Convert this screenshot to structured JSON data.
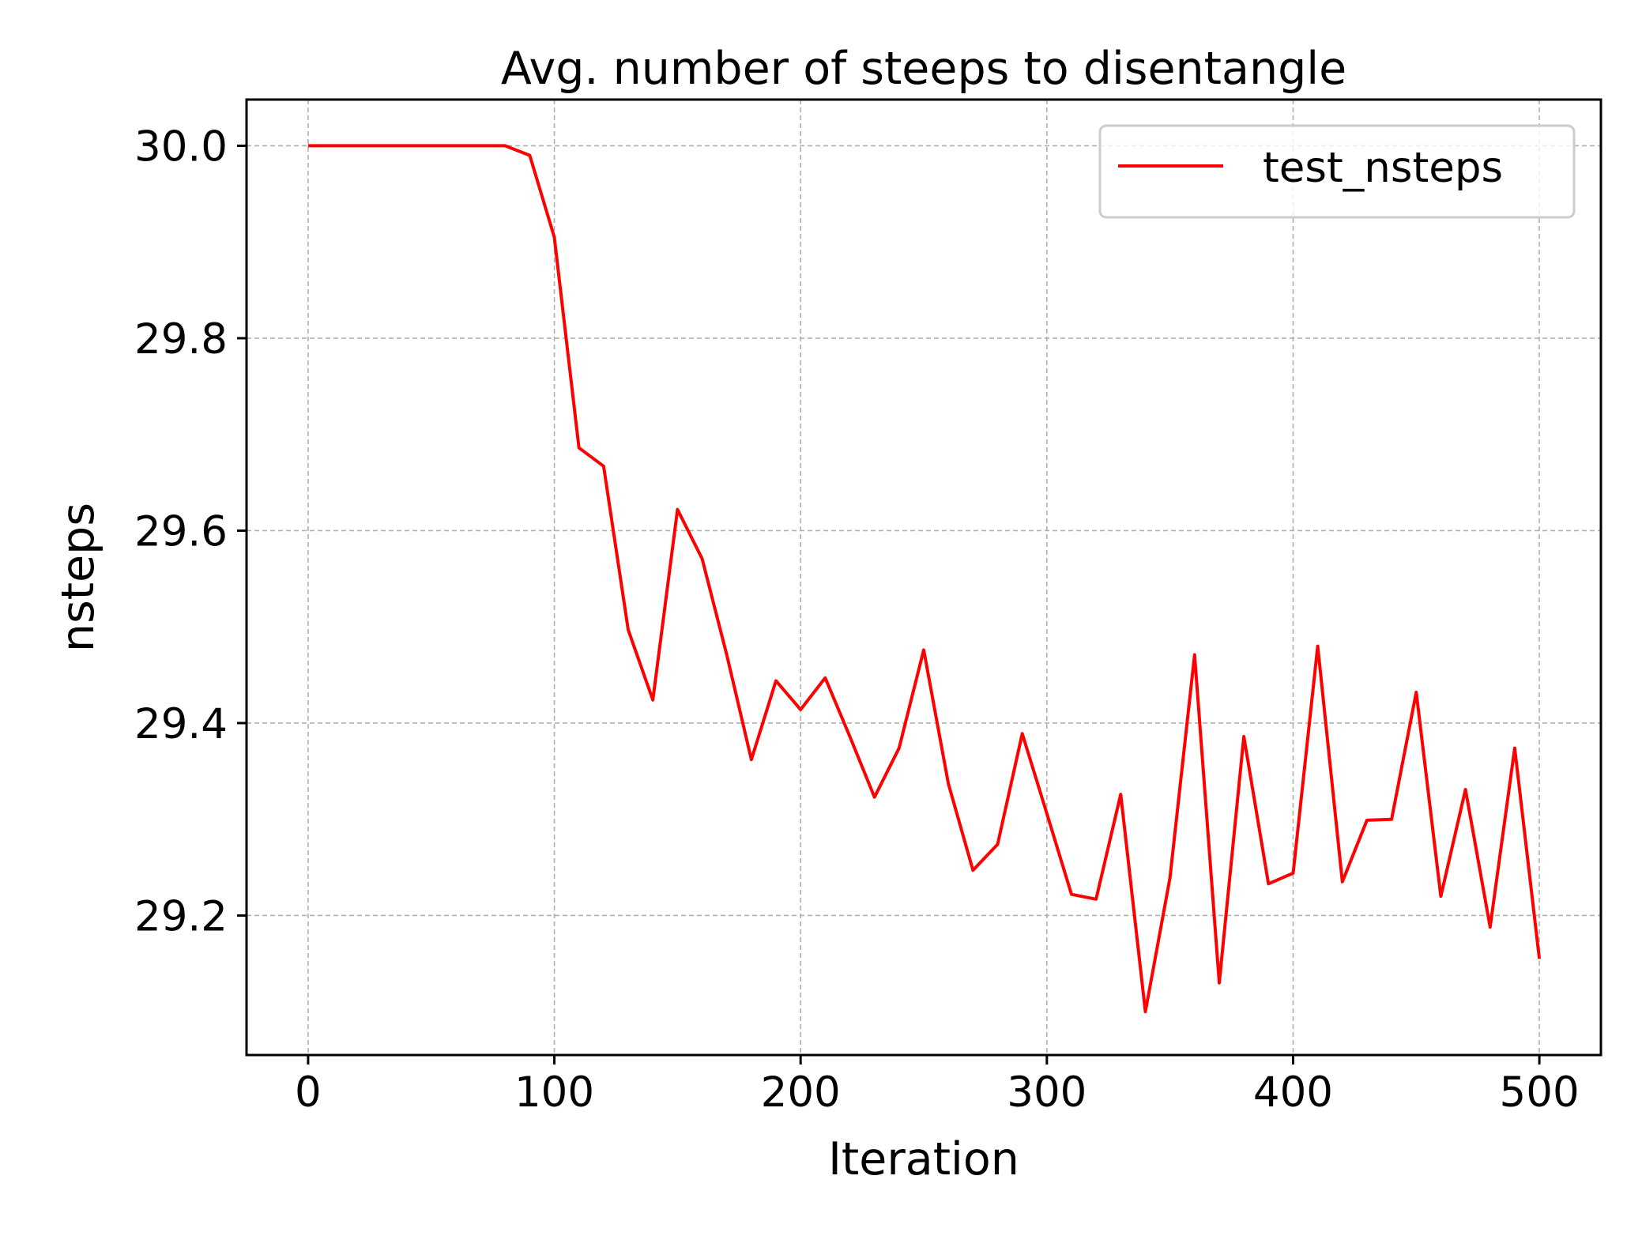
{
  "chart_data": {
    "type": "line",
    "title": "Avg. number of steeps to disentangle",
    "xlabel": "Iteration",
    "ylabel": "nsteps",
    "xlim": [
      -25,
      525
    ],
    "ylim": [
      29.055,
      30.048
    ],
    "xticks": [
      0,
      100,
      200,
      300,
      400,
      500
    ],
    "xtick_labels": [
      "0",
      "100",
      "200",
      "300",
      "400",
      "500"
    ],
    "yticks": [
      29.2,
      29.4,
      29.6,
      29.8,
      30.0
    ],
    "ytick_labels": [
      "29.2",
      "29.4",
      "29.6",
      "29.8",
      "30.0"
    ],
    "grid": true,
    "legend_position": "top-right",
    "series": [
      {
        "name": "test_nsteps",
        "color": "#ff0000",
        "x": [
          0,
          10,
          20,
          30,
          40,
          50,
          60,
          70,
          80,
          90,
          100,
          110,
          120,
          130,
          140,
          150,
          160,
          170,
          180,
          190,
          200,
          210,
          220,
          230,
          240,
          250,
          260,
          270,
          280,
          290,
          300,
          310,
          320,
          330,
          340,
          350,
          360,
          370,
          380,
          390,
          400,
          410,
          420,
          430,
          440,
          450,
          460,
          470,
          480,
          490,
          500
        ],
        "y": [
          30.0,
          30.0,
          30.0,
          30.0,
          30.0,
          30.0,
          30.0,
          30.0,
          30.0,
          29.99,
          29.905,
          29.686,
          29.667,
          29.497,
          29.424,
          29.622,
          29.571,
          29.471,
          29.362,
          29.444,
          29.414,
          29.447,
          29.386,
          29.323,
          29.374,
          29.476,
          29.337,
          29.247,
          29.274,
          29.389,
          29.306,
          29.222,
          29.217,
          29.326,
          29.1,
          29.239,
          29.471,
          29.13,
          29.386,
          29.233,
          29.244,
          29.48,
          29.235,
          29.299,
          29.3,
          29.432,
          29.22,
          29.331,
          29.188,
          29.374,
          29.155
        ]
      }
    ]
  }
}
